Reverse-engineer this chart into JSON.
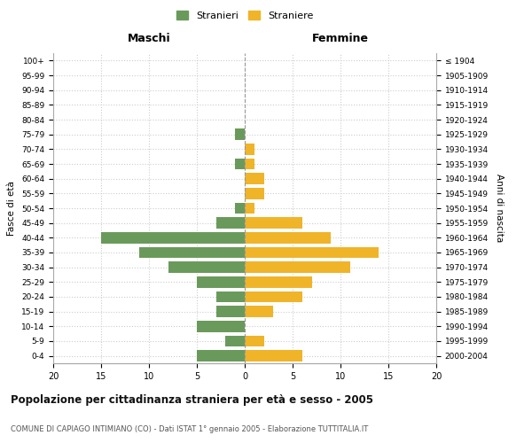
{
  "age_groups": [
    "0-4",
    "5-9",
    "10-14",
    "15-19",
    "20-24",
    "25-29",
    "30-34",
    "35-39",
    "40-44",
    "45-49",
    "50-54",
    "55-59",
    "60-64",
    "65-69",
    "70-74",
    "75-79",
    "80-84",
    "85-89",
    "90-94",
    "95-99",
    "100+"
  ],
  "birth_years": [
    "2000-2004",
    "1995-1999",
    "1990-1994",
    "1985-1989",
    "1980-1984",
    "1975-1979",
    "1970-1974",
    "1965-1969",
    "1960-1964",
    "1955-1959",
    "1950-1954",
    "1945-1949",
    "1940-1944",
    "1935-1939",
    "1930-1934",
    "1925-1929",
    "1920-1924",
    "1915-1919",
    "1910-1914",
    "1905-1909",
    "≤ 1904"
  ],
  "maschi": [
    5,
    2,
    5,
    3,
    3,
    5,
    8,
    11,
    15,
    3,
    1,
    0,
    0,
    1,
    0,
    1,
    0,
    0,
    0,
    0,
    0
  ],
  "femmine": [
    6,
    2,
    0,
    3,
    6,
    7,
    11,
    14,
    9,
    6,
    1,
    2,
    2,
    1,
    1,
    0,
    0,
    0,
    0,
    0,
    0
  ],
  "maschi_color": "#6a9a5b",
  "femmine_color": "#f0b429",
  "background_color": "#ffffff",
  "grid_color": "#cccccc",
  "title": "Popolazione per cittadinanza straniera per età e sesso - 2005",
  "subtitle": "COMUNE DI CAPIAGO INTIMIANO (CO) - Dati ISTAT 1° gennaio 2005 - Elaborazione TUTTITALIA.IT",
  "ylabel_left": "Fasce di età",
  "ylabel_right": "Anni di nascita",
  "xlabel_left": "Maschi",
  "xlabel_right": "Femmine",
  "legend_maschi": "Stranieri",
  "legend_femmine": "Straniere",
  "xlim": 20,
  "bar_height": 0.75
}
